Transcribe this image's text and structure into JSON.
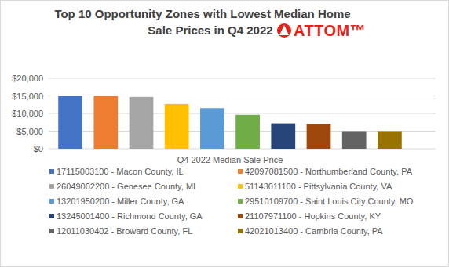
{
  "chart_data": {
    "type": "bar",
    "title": "Top 10 Opportunity Zones with Lowest Median Home Sale Prices in Q4 2022",
    "annotations": [
      "ATTOM™"
    ],
    "categories": [
      "Q4 2022 Median Sale Price"
    ],
    "series": [
      {
        "name": "17115003100 - Macon County, IL",
        "color": "#4472c4",
        "values": [
          15000
        ]
      },
      {
        "name": "42097081500 - Northumberland County, PA",
        "color": "#ed7d31",
        "values": [
          15000
        ]
      },
      {
        "name": "26049002200 - Genesee County, MI",
        "color": "#a5a5a5",
        "values": [
          14700
        ]
      },
      {
        "name": "51143011100 - Pittsylvania County, VA",
        "color": "#ffc000",
        "values": [
          12700
        ]
      },
      {
        "name": "13201950200 - Miller County, GA",
        "color": "#5b9bd5",
        "values": [
          11500
        ]
      },
      {
        "name": "29510109700 - Saint Louis City County, MO",
        "color": "#70ad47",
        "values": [
          9600
        ]
      },
      {
        "name": "13245001400 - Richmond County, GA",
        "color": "#264478",
        "values": [
          7200
        ]
      },
      {
        "name": "21107971100 - Hopkins County, KY",
        "color": "#9e480e",
        "values": [
          7000
        ]
      },
      {
        "name": "12011030402 - Broward County, FL",
        "color": "#636363",
        "values": [
          5000
        ]
      },
      {
        "name": "42021013400 - Cambria County, PA",
        "color": "#997300",
        "values": [
          5000
        ]
      }
    ],
    "ylim": [
      0,
      20000
    ],
    "yticks": [
      {
        "value": 0,
        "label": "$0"
      },
      {
        "value": 5000,
        "label": "$5,000"
      },
      {
        "value": 10000,
        "label": "$10,000"
      },
      {
        "value": 15000,
        "label": "$15,000"
      },
      {
        "value": 20000,
        "label": "$20,000"
      }
    ],
    "grid": true,
    "legend": "bottom"
  }
}
